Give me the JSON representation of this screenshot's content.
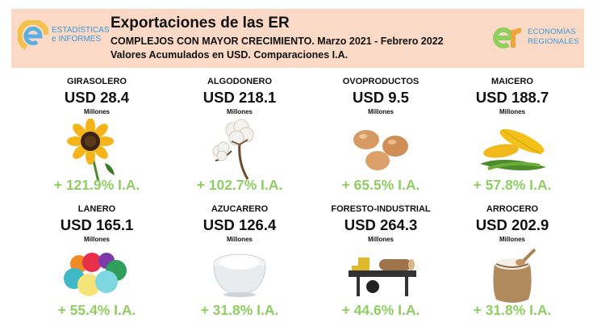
{
  "header": {
    "title": "Exportaciones de las ER",
    "subtitle": "COMPLEJOS CON MAYOR CRECIMIENTO. Marzo 2021 - Febrero 2022",
    "subtitle2": "Valores Acumulados en USD. Comparaciones I.A.",
    "logo_left": {
      "line1": "ESTADÍSTICAS",
      "line2": "e INFORMES"
    },
    "logo_right": {
      "line1": "ECONOMÍAS",
      "line2": "REGIONALES"
    }
  },
  "complejos": [
    {
      "name": "GIRASOLERO",
      "value": "USD 28.4",
      "unit": "Millones",
      "growth": "+ 121.9% I.A.",
      "icon": "sunflower-icon"
    },
    {
      "name": "ALGODONERO",
      "value": "USD 218.1",
      "unit": "Millones",
      "growth": "+ 102.7% I.A.",
      "icon": "cotton-icon"
    },
    {
      "name": "OVOPRODUCTOS",
      "value": "USD 9.5",
      "unit": "Millones",
      "growth": "+ 65.5% I.A.",
      "icon": "eggs-icon"
    },
    {
      "name": "MAICERO",
      "value": "USD 188.7",
      "unit": "Millones",
      "growth": "+ 57.8% I.A.",
      "icon": "corn-icon"
    },
    {
      "name": "LANERO",
      "value": "USD 165.1",
      "unit": "Millones",
      "growth": "+ 55.4% I.A.",
      "icon": "yarn-icon"
    },
    {
      "name": "AZUCARERO",
      "value": "USD 126.4",
      "unit": "Millones",
      "growth": "+ 31.8% I.A.",
      "icon": "sugar-icon"
    },
    {
      "name": "FORESTO-INDUSTRIAL",
      "value": "USD 264.3",
      "unit": "Millones",
      "growth": "+ 44.6% I.A.",
      "icon": "sawmill-icon"
    },
    {
      "name": "ARROCERO",
      "value": "USD 202.9",
      "unit": "Millones",
      "growth": "+ 31.8% I.A.",
      "icon": "rice-sack-icon"
    }
  ],
  "colors": {
    "header_bg": "#fbd9c7",
    "growth": "#8fcf62",
    "logo_text": "#3b9ad6"
  }
}
